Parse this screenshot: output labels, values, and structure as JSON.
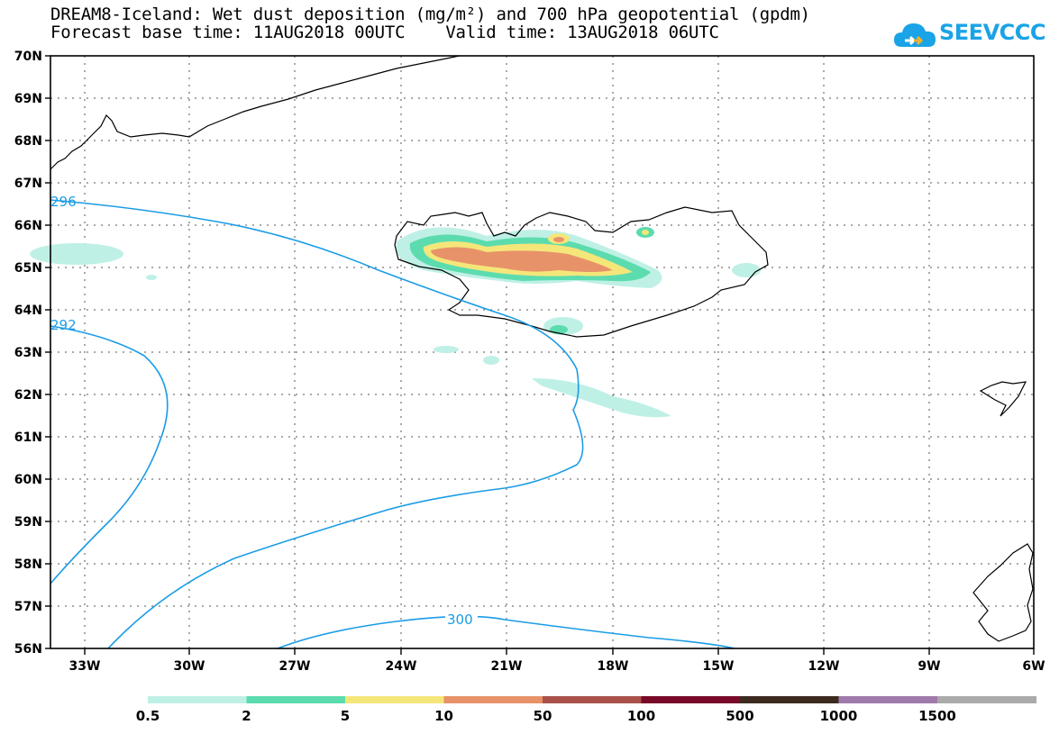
{
  "title": {
    "line1": "DREAM8-Iceland: Wet dust deposition (mg/m²) and 700 hPa geopotential (gpdm)",
    "line2": "Forecast base time: 11AUG2018 00UTC    Valid time: 13AUG2018 06UTC"
  },
  "logo": {
    "text": "SEEVCCC"
  },
  "map": {
    "lat_labels": [
      "70N",
      "69N",
      "68N",
      "67N",
      "66N",
      "65N",
      "64N",
      "63N",
      "62N",
      "61N",
      "60N",
      "59N",
      "58N",
      "57N",
      "56N"
    ],
    "lon_labels": [
      "33W",
      "30W",
      "27W",
      "24W",
      "21W",
      "18W",
      "15W",
      "12W",
      "9W",
      "6W"
    ],
    "contour_labels": [
      "296",
      "292",
      "300"
    ],
    "contour_color": "#1a9ce6"
  },
  "legend": {
    "labels": [
      "0.5",
      "2",
      "5",
      "10",
      "50",
      "100",
      "500",
      "1000",
      "1500"
    ],
    "colors": [
      "#bff0e6",
      "#5cdcae",
      "#f5e67a",
      "#e8926a",
      "#a8524a",
      "#780a28",
      "#3c2a1e",
      "#a07aaa",
      "#aaaaaa"
    ]
  }
}
